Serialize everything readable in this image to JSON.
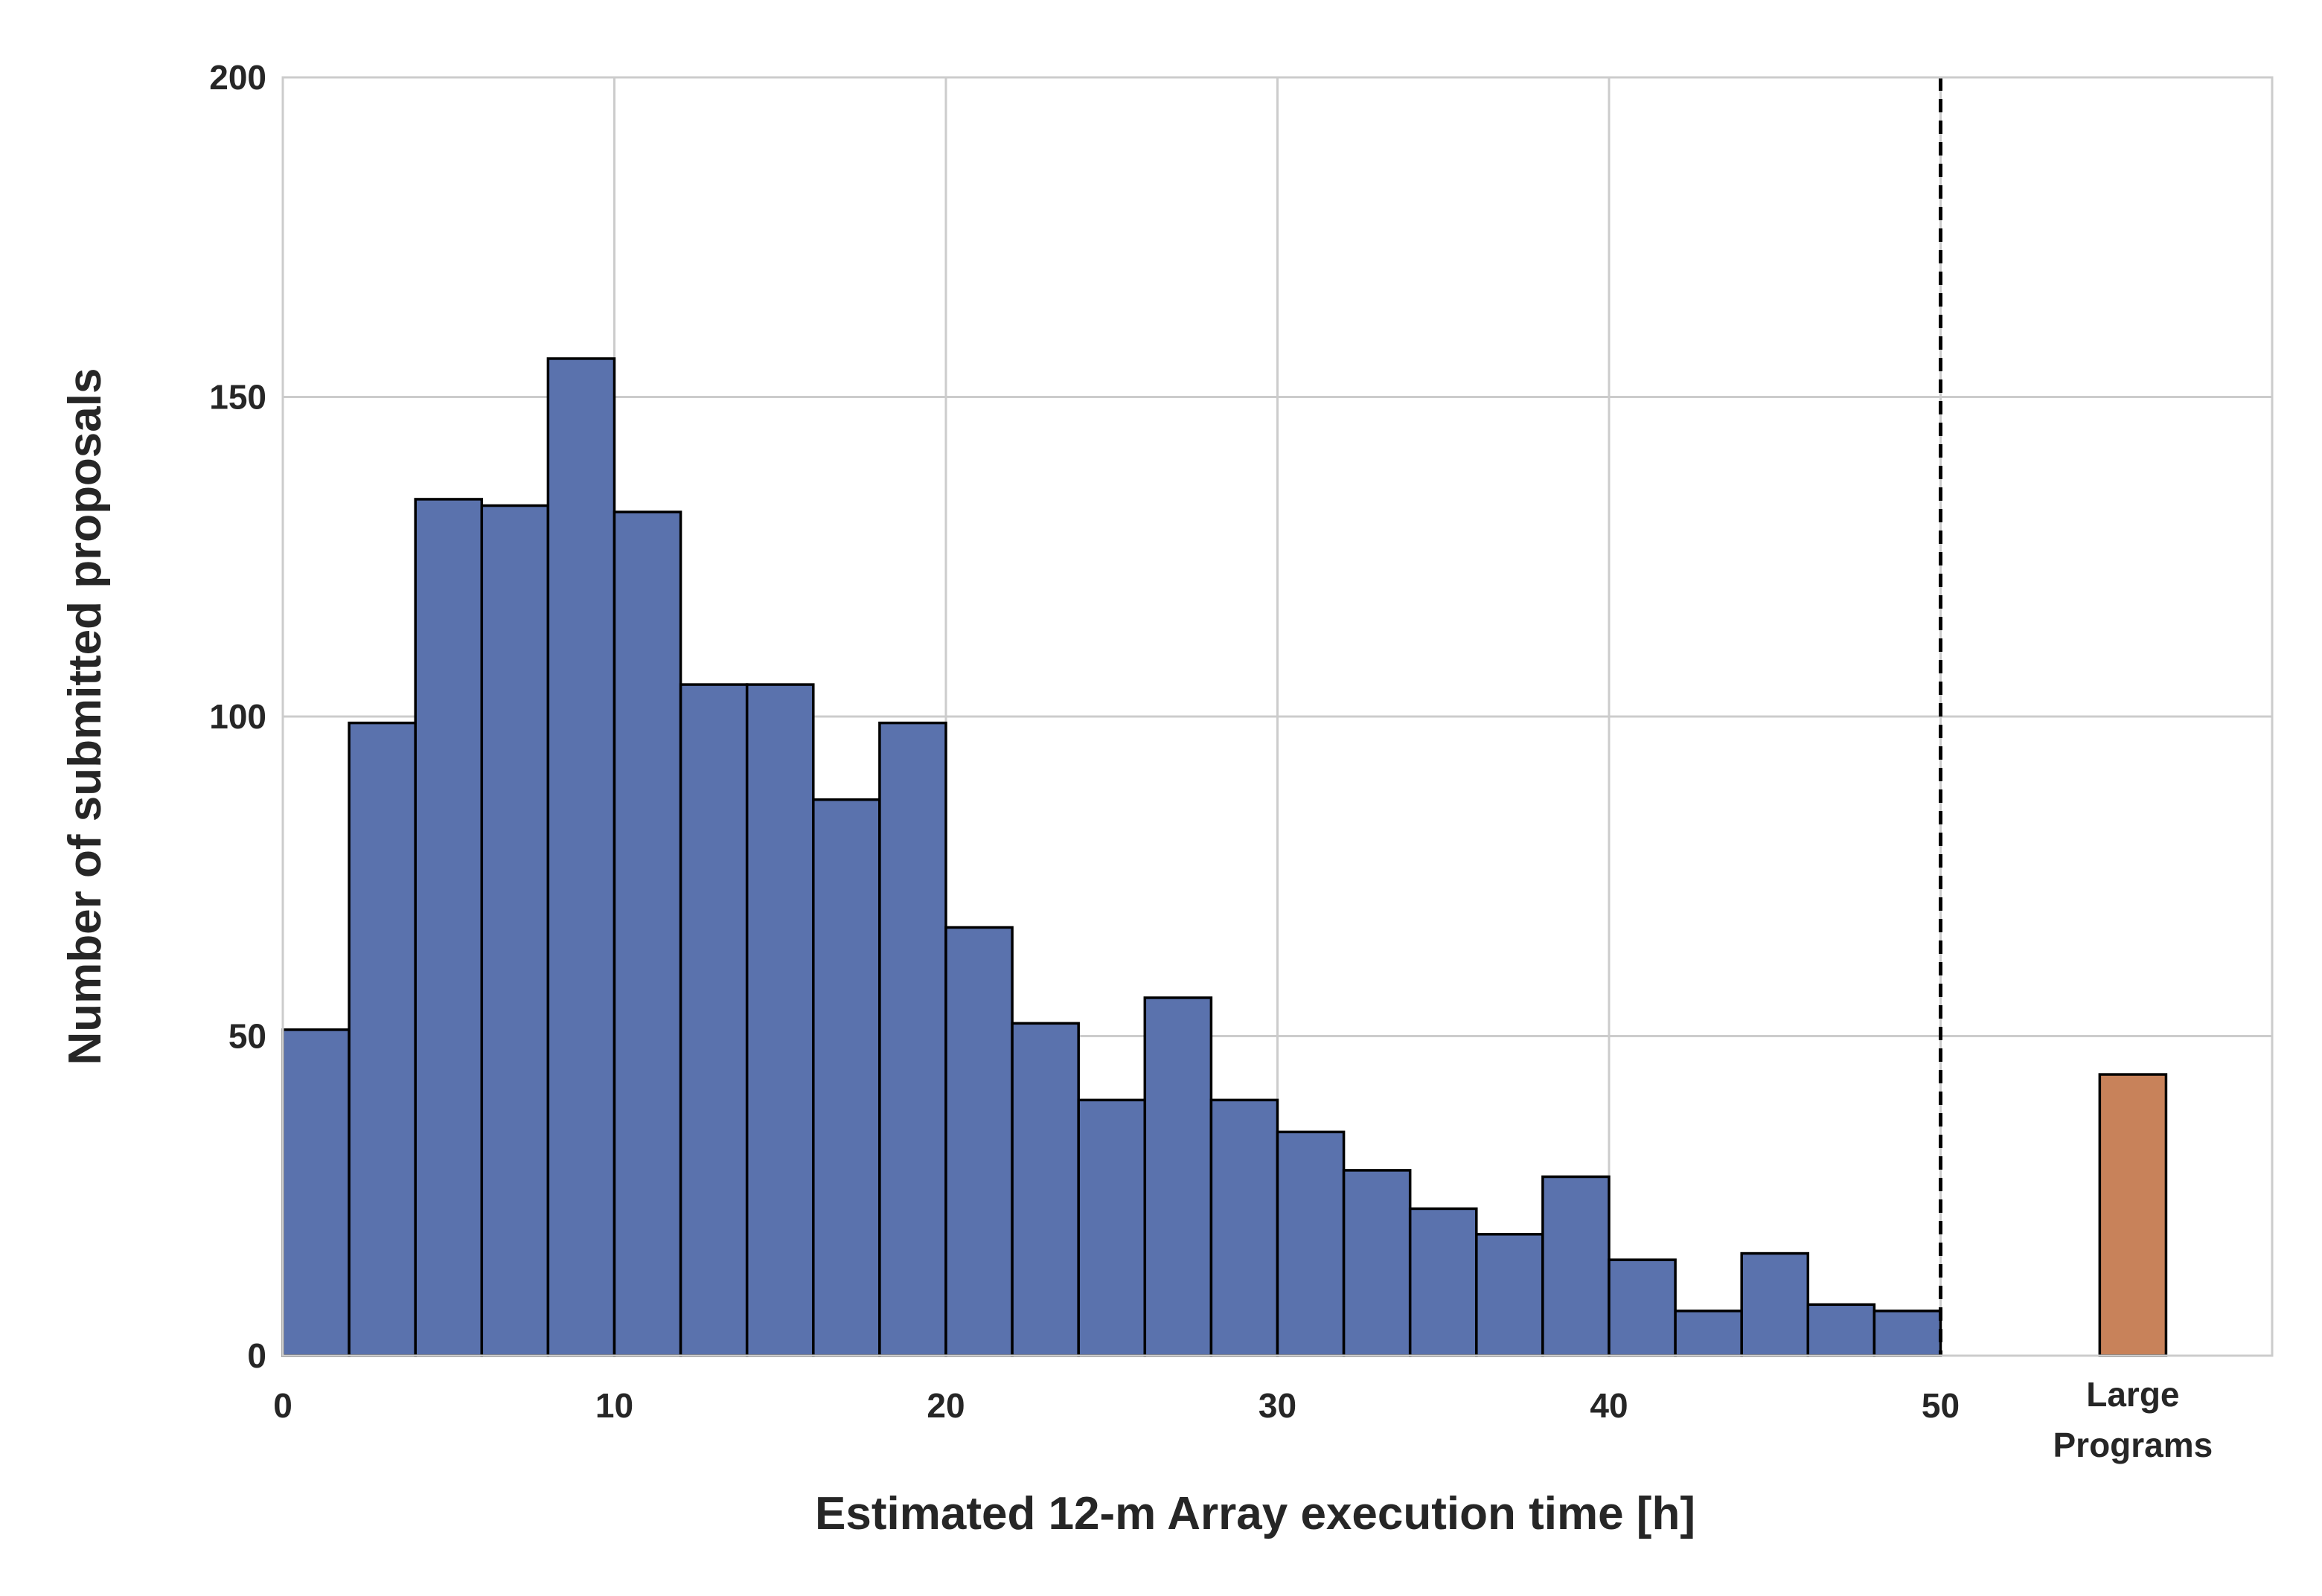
{
  "chart_data": {
    "type": "bar",
    "title": "",
    "xlabel": "Estimated 12-m Array execution time  [h]",
    "ylabel": "Number of submitted proposals",
    "xlim": [
      0,
      60
    ],
    "ylim": [
      0,
      200
    ],
    "x_ticks": [
      "0",
      "10",
      "20",
      "30",
      "40",
      "50"
    ],
    "x_tick_values": [
      0,
      10,
      20,
      30,
      40,
      50
    ],
    "y_ticks": [
      "0",
      "50",
      "100",
      "150",
      "200"
    ],
    "y_tick_values": [
      0,
      50,
      100,
      150,
      200
    ],
    "grid": true,
    "bin_width_h": 2,
    "bin_starts_h": [
      0,
      2,
      4,
      6,
      8,
      10,
      12,
      14,
      16,
      18,
      20,
      22,
      24,
      26,
      28,
      30,
      32,
      34,
      36,
      38,
      40,
      42,
      44,
      46,
      48
    ],
    "series": [
      {
        "values": [
          51,
          99,
          134,
          133,
          156,
          132,
          105,
          105,
          87,
          99,
          67,
          52,
          40,
          56,
          40,
          35,
          29,
          23,
          19,
          28,
          15,
          7,
          16,
          8,
          7
        ],
        "color": "#5a72ad"
      }
    ],
    "large_programs": {
      "label_lines": [
        "Large",
        "Programs"
      ],
      "value": 44,
      "x_center_h": 55.8,
      "width_h": 2,
      "color": "#c8825a"
    },
    "cutoff_line": {
      "x_h": 50,
      "style": "dashed",
      "color": "#000000"
    }
  }
}
